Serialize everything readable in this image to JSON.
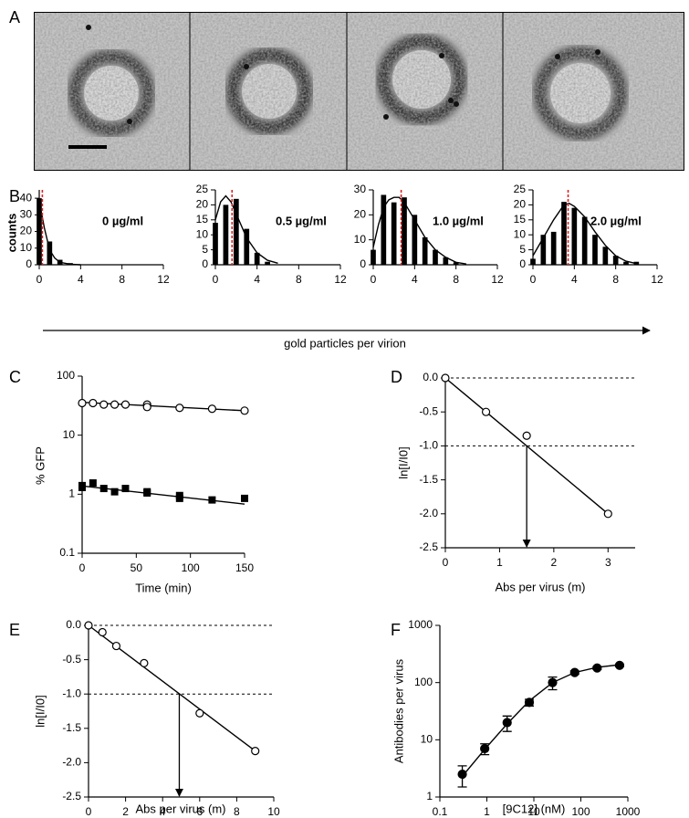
{
  "panel_labels": [
    "A",
    "B",
    "C",
    "D",
    "E",
    "F"
  ],
  "shared_axis": {
    "xlabel": "gold particles per virion",
    "ylabel": "counts"
  },
  "chart_data": [
    {
      "type": "bar",
      "annotation": "0 µg/ml",
      "color": "#000000",
      "mean_color": "#e02020",
      "x": [
        0,
        1,
        2,
        3
      ],
      "values": [
        40,
        14,
        3,
        1
      ],
      "fit_x": [
        0,
        0.5,
        1,
        1.5,
        2,
        3,
        4
      ],
      "fit_values": [
        38,
        22,
        9,
        4,
        1.5,
        0.3,
        0
      ],
      "mean": 0.3,
      "xlim": [
        0,
        12
      ],
      "ylim": [
        0,
        45
      ],
      "xticks": [
        0,
        4,
        8,
        12
      ],
      "yticks": [
        0,
        10,
        20,
        30,
        40
      ]
    },
    {
      "type": "bar",
      "annotation": "0.5 µg/ml",
      "color": "#000000",
      "mean_color": "#e02020",
      "x": [
        0,
        1,
        2,
        3,
        4,
        5
      ],
      "values": [
        14,
        20,
        22,
        12,
        4,
        1
      ],
      "fit_x": [
        0,
        0.5,
        1,
        1.5,
        2,
        3,
        4,
        5,
        6
      ],
      "fit_values": [
        15,
        21,
        23,
        21,
        17,
        9,
        4,
        1.5,
        0.5
      ],
      "mean": 1.6,
      "xlim": [
        0,
        12
      ],
      "ylim": [
        0,
        25
      ],
      "xticks": [
        0,
        4,
        8,
        12
      ],
      "yticks": [
        0,
        5,
        10,
        15,
        20,
        25
      ]
    },
    {
      "type": "bar",
      "annotation": "1.0 µg/ml",
      "color": "#000000",
      "mean_color": "#e02020",
      "x": [
        0,
        1,
        2,
        3,
        4,
        5,
        6,
        7,
        8
      ],
      "values": [
        6,
        28,
        25,
        27,
        20,
        11,
        6,
        3,
        1
      ],
      "fit_x": [
        0,
        0.5,
        1,
        1.5,
        2,
        2.5,
        3,
        4,
        5,
        6,
        7,
        8,
        9
      ],
      "fit_values": [
        7,
        16,
        23,
        26,
        27,
        27,
        25,
        18,
        11,
        6,
        3,
        1,
        0.3
      ],
      "mean": 2.7,
      "xlim": [
        0,
        12
      ],
      "ylim": [
        0,
        30
      ],
      "xticks": [
        0,
        4,
        8,
        12
      ],
      "yticks": [
        0,
        10,
        20,
        30
      ]
    },
    {
      "type": "bar",
      "annotation": "2.0 µg/ml",
      "color": "#000000",
      "mean_color": "#e02020",
      "x": [
        0,
        1,
        2,
        3,
        4,
        5,
        6,
        7,
        8,
        9,
        10
      ],
      "values": [
        2,
        10,
        11,
        21,
        19,
        16,
        10,
        6,
        3,
        1,
        1
      ],
      "fit_x": [
        0,
        1,
        2,
        3,
        3.5,
        4,
        5,
        6,
        7,
        8,
        9,
        10
      ],
      "fit_values": [
        3,
        9,
        15,
        20,
        20.5,
        19.5,
        16,
        11,
        6.5,
        3,
        1.2,
        0.4
      ],
      "mean": 3.4,
      "xlim": [
        0,
        12
      ],
      "ylim": [
        0,
        25
      ],
      "xticks": [
        0,
        4,
        8,
        12
      ],
      "yticks": [
        0,
        5,
        10,
        15,
        20,
        25
      ]
    },
    {
      "type": "scatter",
      "xlabel": "Time (min)",
      "ylabel": "% GFP",
      "ylog": true,
      "xlim": [
        0,
        150
      ],
      "ylim": [
        0.1,
        100
      ],
      "xticks": [
        0,
        50,
        100,
        150
      ],
      "yticks": [
        0.1,
        1,
        10,
        100
      ],
      "series": [
        {
          "marker": "circle-open",
          "x": [
            0,
            10,
            20,
            30,
            40,
            60,
            60,
            90,
            120,
            150
          ],
          "values": [
            35,
            35,
            33,
            33,
            33,
            33,
            30,
            29,
            28,
            26
          ],
          "fit_x": [
            0,
            150
          ],
          "fit_values": [
            36,
            26
          ]
        },
        {
          "marker": "square",
          "x": [
            0,
            0,
            10,
            20,
            30,
            40,
            60,
            60,
            90,
            90,
            120,
            150
          ],
          "values": [
            1.4,
            1.3,
            1.55,
            1.25,
            1.1,
            1.25,
            1.05,
            1.1,
            0.95,
            0.85,
            0.8,
            0.85
          ],
          "fit_x": [
            0,
            150
          ],
          "fit_values": [
            1.38,
            0.68
          ]
        }
      ]
    },
    {
      "type": "scatter",
      "xlabel": "Abs per virus (m)",
      "ylabel": "ln[I/I0]",
      "xlim": [
        0,
        3.5
      ],
      "ylim": [
        -2.5,
        0
      ],
      "xticks": [
        0,
        1,
        2,
        3
      ],
      "yticks": [
        {
          "value": 0,
          "label": "0.0"
        },
        -0.5,
        {
          "value": -1,
          "label": "-1.0"
        },
        -1.5,
        {
          "value": -2,
          "label": "-2.0"
        },
        -2.5
      ],
      "hlines": [
        0,
        -1
      ],
      "arrow": {
        "x": 1.5,
        "y": -1
      },
      "series": [
        {
          "marker": "circle-open",
          "x": [
            0,
            0.75,
            1.5,
            3
          ],
          "values": [
            0,
            -0.5,
            -0.85,
            -2.0
          ],
          "fit_x": [
            0,
            3
          ],
          "fit_values": [
            0,
            -2.0
          ]
        }
      ]
    },
    {
      "type": "scatter",
      "xlabel": "Abs per virus (m)",
      "ylabel": "ln[I/I0]",
      "xlim": [
        0,
        10
      ],
      "ylim": [
        -2.5,
        0
      ],
      "xticks": [
        0,
        2,
        4,
        6,
        8,
        10
      ],
      "yticks": [
        {
          "value": 0,
          "label": "0.0"
        },
        -0.5,
        {
          "value": -1,
          "label": "-1.0"
        },
        -1.5,
        {
          "value": -2,
          "label": "-2.0"
        },
        -2.5
      ],
      "hlines": [
        0,
        -1
      ],
      "arrow": {
        "x": 4.9,
        "y": -1
      },
      "series": [
        {
          "marker": "circle-open",
          "x": [
            0,
            0.75,
            1.5,
            3,
            6,
            9
          ],
          "values": [
            0,
            -0.1,
            -0.3,
            -0.55,
            -1.28,
            -1.83
          ],
          "fit_x": [
            0,
            9
          ],
          "fit_values": [
            0,
            -1.83
          ]
        }
      ]
    },
    {
      "type": "scatter",
      "xlabel": "[9C12] (nM)",
      "ylabel": "Antibodies per virus",
      "xlog": true,
      "ylog": true,
      "xlim": [
        0.1,
        1000
      ],
      "ylim": [
        1,
        1000
      ],
      "xticks": [
        0.1,
        1,
        10,
        100,
        1000
      ],
      "yticks": [
        1,
        10,
        100,
        1000
      ],
      "series": [
        {
          "marker": "circle-filled",
          "x": [
            0.3,
            0.9,
            2.7,
            8,
            25,
            74,
            222,
            667
          ],
          "values": [
            2.5,
            7,
            20,
            45,
            100,
            150,
            180,
            200
          ],
          "errors": [
            1,
            1.5,
            6,
            6,
            25,
            10,
            10,
            10
          ],
          "fit_x": [
            0.3,
            0.9,
            2.7,
            8,
            25,
            74,
            222,
            667
          ],
          "fit_values": [
            2.3,
            6.8,
            19,
            48,
            100,
            150,
            185,
            205
          ]
        }
      ]
    }
  ]
}
